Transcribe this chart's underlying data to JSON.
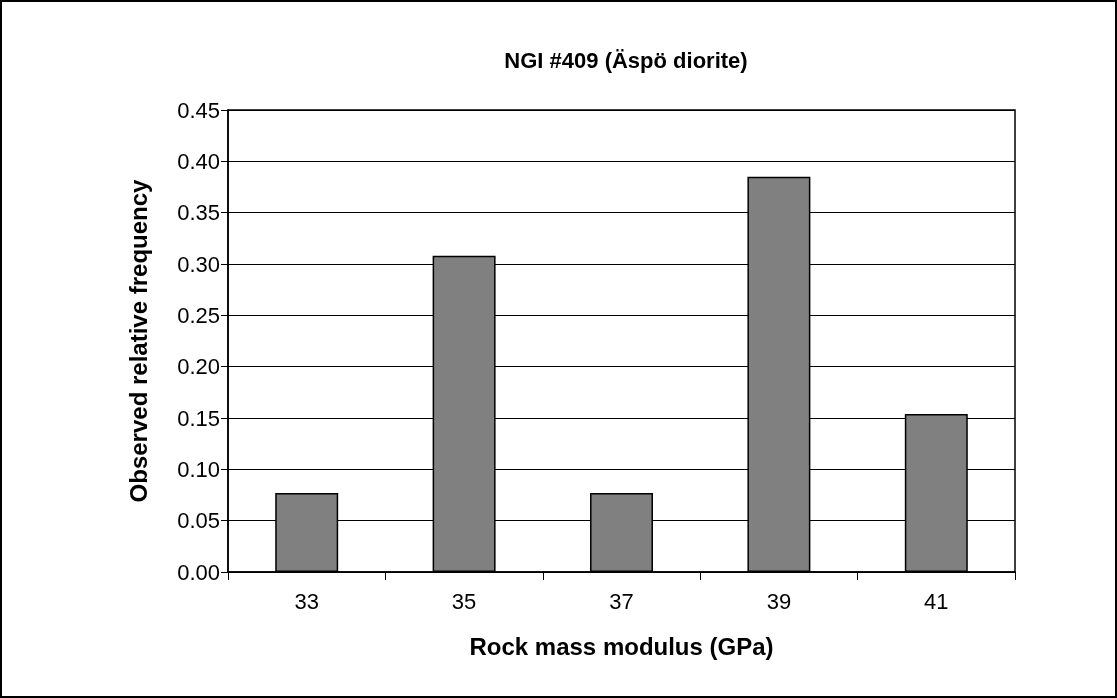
{
  "chart_data": {
    "type": "bar",
    "title": "NGI #409 (Äspö diorite)",
    "xlabel": "Rock mass modulus (GPa)",
    "ylabel": "Observed relative frequency",
    "categories": [
      "33",
      "35",
      "37",
      "39",
      "41"
    ],
    "values": [
      0.077,
      0.308,
      0.077,
      0.385,
      0.154
    ],
    "color": "#808080",
    "ylim": [
      0,
      0.45
    ],
    "yticks": [
      {
        "value": 0,
        "label": "0.00"
      },
      {
        "value": 0.05,
        "label": "0.05"
      },
      {
        "value": 0.1,
        "label": "0.10"
      },
      {
        "value": 0.15,
        "label": "0.15"
      },
      {
        "value": 0.2,
        "label": "0.20"
      },
      {
        "value": 0.25,
        "label": "0.25"
      },
      {
        "value": 0.3,
        "label": "0.30"
      },
      {
        "value": 0.35,
        "label": "0.35"
      },
      {
        "value": 0.4,
        "label": "0.40"
      },
      {
        "value": 0.45,
        "label": "0.45"
      }
    ],
    "grid": "y"
  }
}
